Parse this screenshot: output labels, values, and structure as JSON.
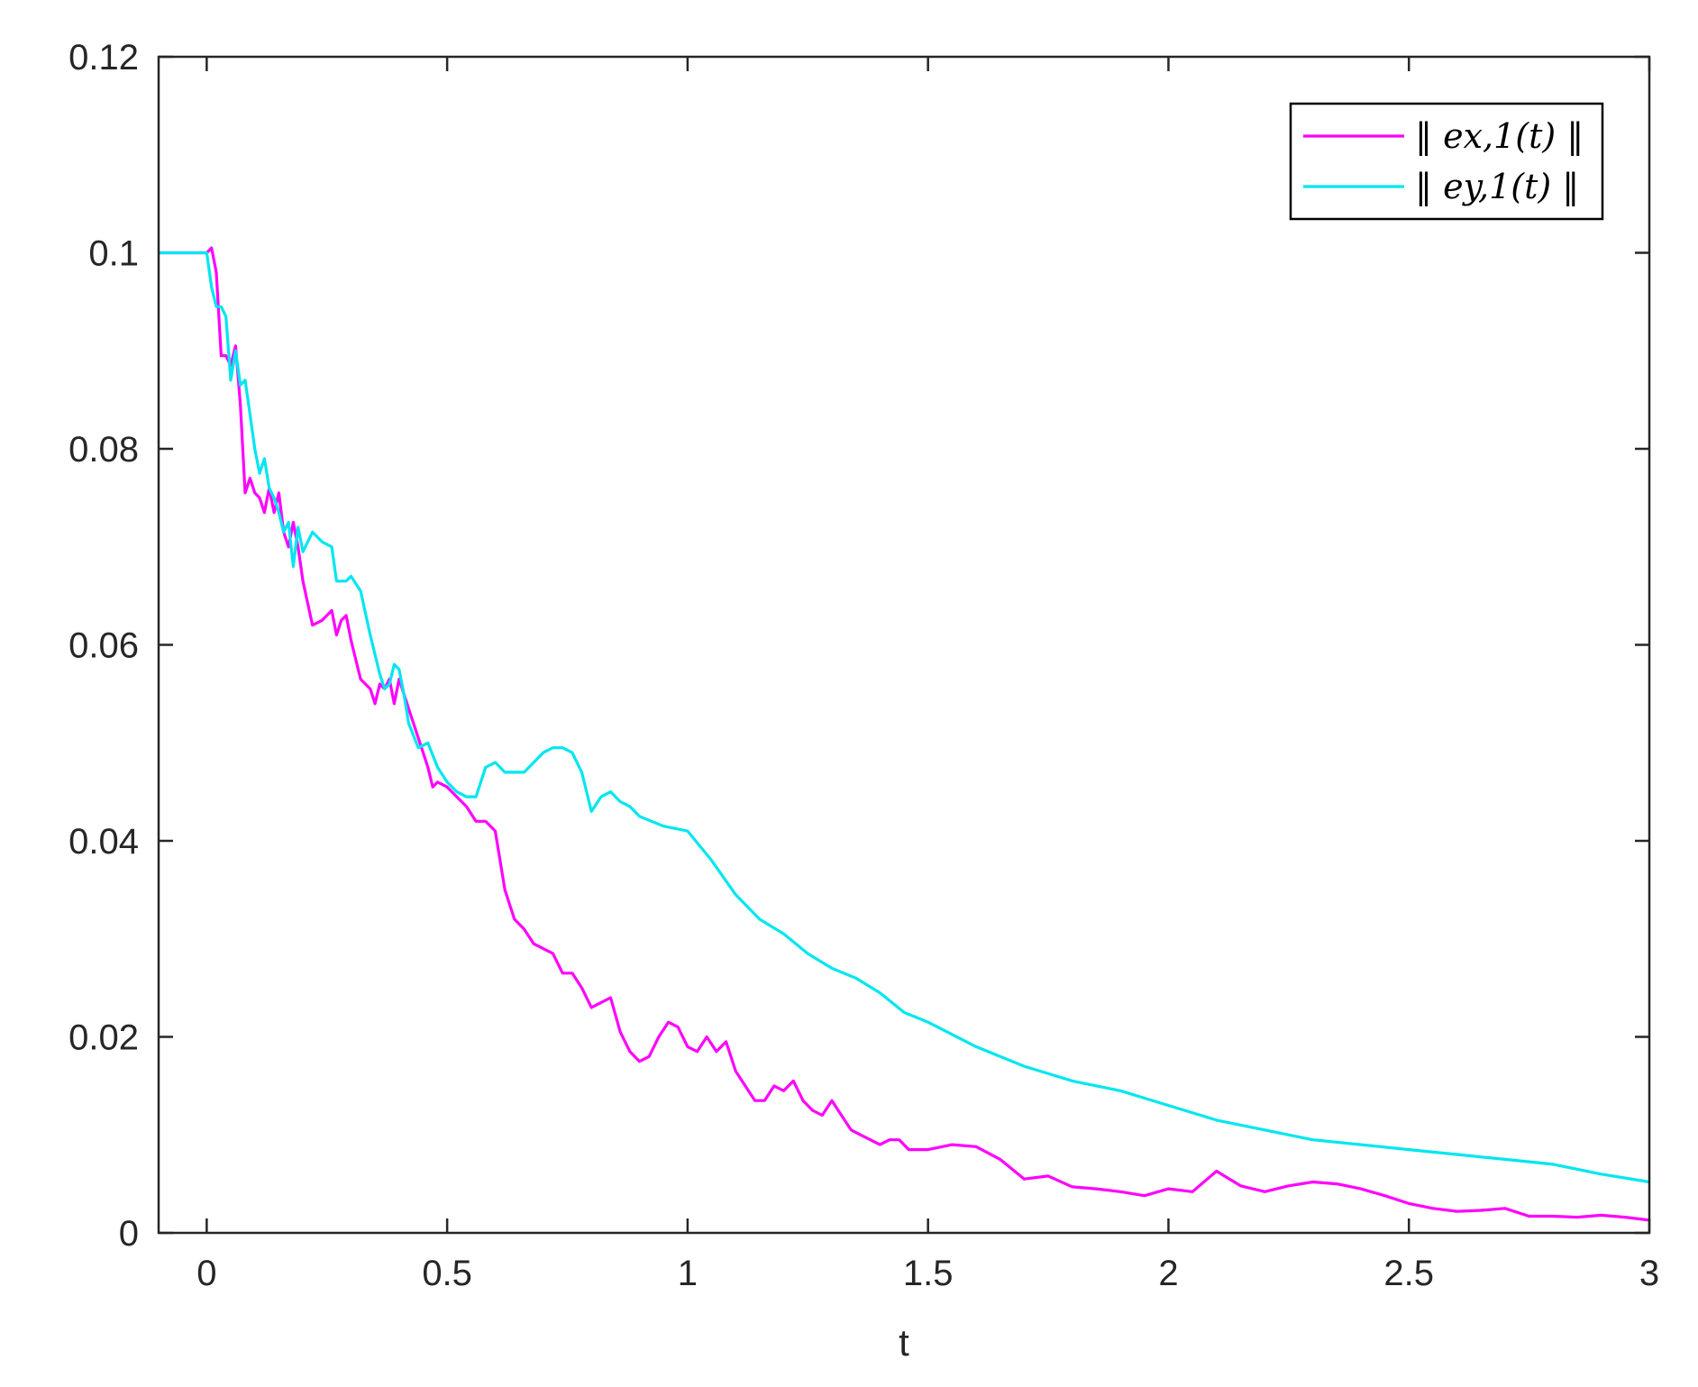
{
  "chart_data": {
    "type": "line",
    "title": "",
    "xlabel": "t",
    "ylabel": "",
    "xlim": [
      -0.1,
      3
    ],
    "ylim": [
      0,
      0.12
    ],
    "xticks": [
      0,
      0.5,
      1,
      1.5,
      2,
      2.5,
      3
    ],
    "xtick_labels": [
      "0",
      "0.5",
      "1",
      "1.5",
      "2",
      "2.5",
      "3"
    ],
    "yticks": [
      0,
      0.02,
      0.04,
      0.06,
      0.08,
      0.1,
      0.12
    ],
    "ytick_labels": [
      "0",
      "0.02",
      "0.04",
      "0.06",
      "0.08",
      "0.1",
      "0.12"
    ],
    "grid": false,
    "legend_position": "top-right",
    "series": [
      {
        "name": "‖ e_{x,1}(t) ‖",
        "legend_label": "‖ ex,1(t) ‖",
        "color": "#ff00ff",
        "x": [
          -0.1,
          0,
          0.01,
          0.02,
          0.03,
          0.04,
          0.05,
          0.06,
          0.07,
          0.08,
          0.09,
          0.1,
          0.11,
          0.12,
          0.13,
          0.14,
          0.15,
          0.16,
          0.17,
          0.18,
          0.19,
          0.2,
          0.22,
          0.24,
          0.26,
          0.27,
          0.28,
          0.29,
          0.3,
          0.32,
          0.34,
          0.35,
          0.36,
          0.37,
          0.38,
          0.39,
          0.4,
          0.41,
          0.42,
          0.44,
          0.46,
          0.47,
          0.48,
          0.5,
          0.52,
          0.54,
          0.56,
          0.58,
          0.6,
          0.62,
          0.64,
          0.66,
          0.68,
          0.7,
          0.72,
          0.74,
          0.76,
          0.78,
          0.8,
          0.82,
          0.84,
          0.86,
          0.88,
          0.9,
          0.92,
          0.94,
          0.96,
          0.98,
          1.0,
          1.02,
          1.04,
          1.06,
          1.08,
          1.1,
          1.12,
          1.14,
          1.16,
          1.18,
          1.2,
          1.22,
          1.24,
          1.26,
          1.28,
          1.3,
          1.32,
          1.34,
          1.36,
          1.38,
          1.4,
          1.42,
          1.44,
          1.46,
          1.48,
          1.5,
          1.55,
          1.6,
          1.65,
          1.7,
          1.75,
          1.8,
          1.85,
          1.9,
          1.95,
          2.0,
          2.05,
          2.1,
          2.15,
          2.2,
          2.25,
          2.3,
          2.35,
          2.4,
          2.45,
          2.5,
          2.55,
          2.6,
          2.65,
          2.7,
          2.75,
          2.8,
          2.85,
          2.9,
          2.95,
          3.0
        ],
        "y": [
          0.1,
          0.1,
          0.1005,
          0.098,
          0.0895,
          0.0895,
          0.0885,
          0.0905,
          0.0845,
          0.0755,
          0.077,
          0.0755,
          0.075,
          0.0735,
          0.076,
          0.0735,
          0.0755,
          0.0715,
          0.07,
          0.0725,
          0.07,
          0.0665,
          0.062,
          0.0625,
          0.0635,
          0.061,
          0.0625,
          0.063,
          0.0605,
          0.0565,
          0.0555,
          0.054,
          0.056,
          0.0555,
          0.0565,
          0.054,
          0.0565,
          0.055,
          0.0535,
          0.0505,
          0.0475,
          0.0455,
          0.046,
          0.0455,
          0.0445,
          0.0435,
          0.042,
          0.042,
          0.041,
          0.035,
          0.032,
          0.031,
          0.0295,
          0.029,
          0.0285,
          0.0265,
          0.0265,
          0.025,
          0.023,
          0.0235,
          0.024,
          0.0205,
          0.0185,
          0.0175,
          0.018,
          0.02,
          0.0215,
          0.021,
          0.019,
          0.0185,
          0.02,
          0.0185,
          0.0195,
          0.0165,
          0.015,
          0.0135,
          0.0135,
          0.015,
          0.0145,
          0.0155,
          0.0135,
          0.0125,
          0.012,
          0.0135,
          0.012,
          0.0105,
          0.01,
          0.0095,
          0.009,
          0.0095,
          0.0095,
          0.0085,
          0.0085,
          0.0085,
          0.009,
          0.0088,
          0.0075,
          0.0055,
          0.0058,
          0.0047,
          0.0045,
          0.0042,
          0.0038,
          0.0045,
          0.0042,
          0.0063,
          0.0048,
          0.0042,
          0.0048,
          0.0052,
          0.005,
          0.0045,
          0.0038,
          0.003,
          0.0025,
          0.0022,
          0.0023,
          0.0025,
          0.0017,
          0.0017,
          0.0016,
          0.0018,
          0.0016,
          0.0013
        ]
      },
      {
        "name": "‖ e_{y,1}(t) ‖",
        "legend_label": "‖ ey,1(t) ‖",
        "color": "#00e6f0",
        "x": [
          -0.1,
          0,
          0.01,
          0.02,
          0.03,
          0.04,
          0.05,
          0.06,
          0.07,
          0.08,
          0.09,
          0.1,
          0.11,
          0.12,
          0.13,
          0.14,
          0.15,
          0.16,
          0.17,
          0.18,
          0.19,
          0.2,
          0.22,
          0.24,
          0.26,
          0.27,
          0.28,
          0.29,
          0.3,
          0.32,
          0.34,
          0.36,
          0.37,
          0.38,
          0.39,
          0.4,
          0.41,
          0.42,
          0.44,
          0.46,
          0.48,
          0.5,
          0.52,
          0.54,
          0.56,
          0.58,
          0.6,
          0.62,
          0.64,
          0.66,
          0.68,
          0.7,
          0.72,
          0.74,
          0.76,
          0.78,
          0.8,
          0.82,
          0.84,
          0.86,
          0.88,
          0.9,
          0.95,
          1.0,
          1.05,
          1.1,
          1.15,
          1.2,
          1.25,
          1.3,
          1.35,
          1.4,
          1.45,
          1.5,
          1.6,
          1.7,
          1.8,
          1.9,
          2.0,
          2.1,
          2.2,
          2.3,
          2.4,
          2.5,
          2.6,
          2.7,
          2.8,
          2.9,
          3.0
        ],
        "y": [
          0.1,
          0.1,
          0.0965,
          0.0945,
          0.0945,
          0.0935,
          0.087,
          0.09,
          0.0865,
          0.087,
          0.0835,
          0.08,
          0.0775,
          0.079,
          0.076,
          0.075,
          0.0735,
          0.0715,
          0.0725,
          0.068,
          0.072,
          0.0695,
          0.0715,
          0.0705,
          0.07,
          0.0665,
          0.0665,
          0.0665,
          0.067,
          0.0655,
          0.061,
          0.057,
          0.0555,
          0.056,
          0.058,
          0.0575,
          0.055,
          0.052,
          0.0495,
          0.05,
          0.0475,
          0.046,
          0.045,
          0.0445,
          0.0445,
          0.0475,
          0.048,
          0.047,
          0.047,
          0.047,
          0.048,
          0.049,
          0.0495,
          0.0495,
          0.049,
          0.047,
          0.043,
          0.0445,
          0.045,
          0.044,
          0.0435,
          0.0425,
          0.0415,
          0.041,
          0.038,
          0.0345,
          0.032,
          0.0305,
          0.0285,
          0.027,
          0.026,
          0.0245,
          0.0225,
          0.0215,
          0.019,
          0.017,
          0.0155,
          0.0145,
          0.013,
          0.0115,
          0.0105,
          0.0095,
          0.009,
          0.0085,
          0.008,
          0.0075,
          0.007,
          0.006,
          0.0052
        ]
      }
    ]
  }
}
